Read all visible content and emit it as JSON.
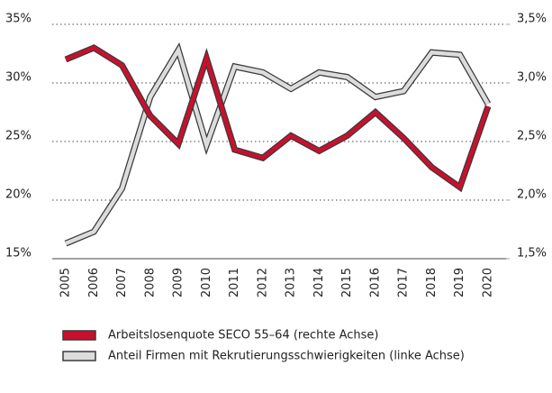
{
  "chart_data": {
    "type": "line",
    "categories": [
      "2005",
      "2006",
      "2007",
      "2008",
      "2009",
      "2010",
      "2011",
      "2012",
      "2013",
      "2014",
      "2015",
      "2016",
      "2017",
      "2018",
      "2019",
      "2020"
    ],
    "series": [
      {
        "name": "Anteil Firmen mit Rekrutierungsschwierigkeiten (linke Achse)",
        "color": "#dcdcdc",
        "axis": "y",
        "values": [
          16.3,
          17.3,
          21.0,
          28.8,
          32.8,
          24.7,
          31.4,
          30.9,
          29.5,
          30.9,
          30.5,
          28.8,
          29.3,
          32.6,
          32.4,
          28.2
        ]
      },
      {
        "name": "Arbeitslosenquote SECO 55–64 (rechte Achse)",
        "color": "#c8102e",
        "axis": "y2",
        "values": [
          3.2,
          3.3,
          3.15,
          2.72,
          2.48,
          3.21,
          2.43,
          2.36,
          2.55,
          2.42,
          2.55,
          2.75,
          2.53,
          2.28,
          2.11,
          2.8
        ]
      }
    ],
    "ylim": [
      15,
      35
    ],
    "yticks": [
      {
        "value": 15,
        "label": "15%"
      },
      {
        "value": 20,
        "label": "20%"
      },
      {
        "value": 25,
        "label": "25%"
      },
      {
        "value": 30,
        "label": "30%"
      },
      {
        "value": 35,
        "label": "35%"
      }
    ],
    "y2lim": [
      1.5,
      3.5
    ],
    "y2ticks": [
      {
        "value": 1.5,
        "label": "1,5%"
      },
      {
        "value": 2.0,
        "label": "2,0%"
      },
      {
        "value": 2.5,
        "label": "2,5%"
      },
      {
        "value": 3.0,
        "label": "3,0%"
      },
      {
        "value": 3.5,
        "label": "3,5%"
      }
    ],
    "grid": true,
    "legend": "bottom"
  }
}
